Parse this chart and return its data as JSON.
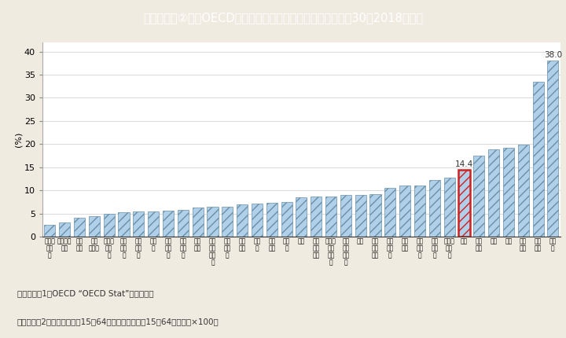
{
  "title": "I－2－2③図　OECD諸国の女性と男性の就業率の差（平成３０（2018）年）",
  "ylabel": "(%)",
  "ylim": [
    0,
    42
  ],
  "yticks": [
    0,
    5,
    10,
    15,
    20,
    25,
    30,
    35,
    40
  ],
  "bar_color": "#b0cfe8",
  "bar_edgecolor": "#6890a8",
  "bar_hatch": "///",
  "highlight_idx": 28,
  "highlight_edgecolor": "#cc2222",
  "highlight_label": "14.4",
  "last_label": "38.0",
  "bg_color": "#f0ebe0",
  "chart_bg": "#ffffff",
  "title_bg": "#55b8c8",
  "title_fg": "#ffffff",
  "note1": "（備考）　1．OECD “OECD Stat”より作成。",
  "note2": "　2．就業率は，、15～64歳就業者数」／、15～64歳人口」×100。",
  "values": [
    2.5,
    3.0,
    4.0,
    4.5,
    5.0,
    5.2,
    5.5,
    5.5,
    5.6,
    5.8,
    6.3,
    6.5,
    6.5,
    7.0,
    7.2,
    7.3,
    7.5,
    8.5,
    8.7,
    8.7,
    9.0,
    9.0,
    9.2,
    10.5,
    11.0,
    11.0,
    12.2,
    12.8,
    14.4,
    17.5,
    18.8,
    19.2,
    19.8,
    33.5,
    38.0
  ],
  "labels": [
    "フィン\nラン\nド",
    "スウェー\nデン",
    "ラト\nビア",
    "ノル\nウェー",
    "アイス\nラン\nド",
    "イス\nラエ\nル",
    "デン\nマー\nク",
    "カナ\nダ",
    "ポル\nトガ\nル",
    "エス\nトニ\nア",
    "フラ\nンス",
    "ルク\nセン\nブル\nク",
    "スロ\nベニ\nア",
    "ベル\nギー",
    "ドイ\nツ",
    "オラ\nンダ",
    "スイ\nス",
    "英国",
    "オー\nスト\nリア",
    "ニュー\nジー\nラン\nド",
    "オー\nスト\nラリ\nア",
    "米国",
    "アイ\nルラ\nンド",
    "スロ\nバキ\nア",
    "スペ\nイン",
    "ポー\nラン\nド",
    "ハン\nガリ\nー",
    "チェコ\n共和\n国",
    "日本",
    "イタ\nリア",
    "韓国",
    "チリ",
    "ギリ\nシャ",
    "メキ\nシコ",
    "トル\nコ"
  ]
}
